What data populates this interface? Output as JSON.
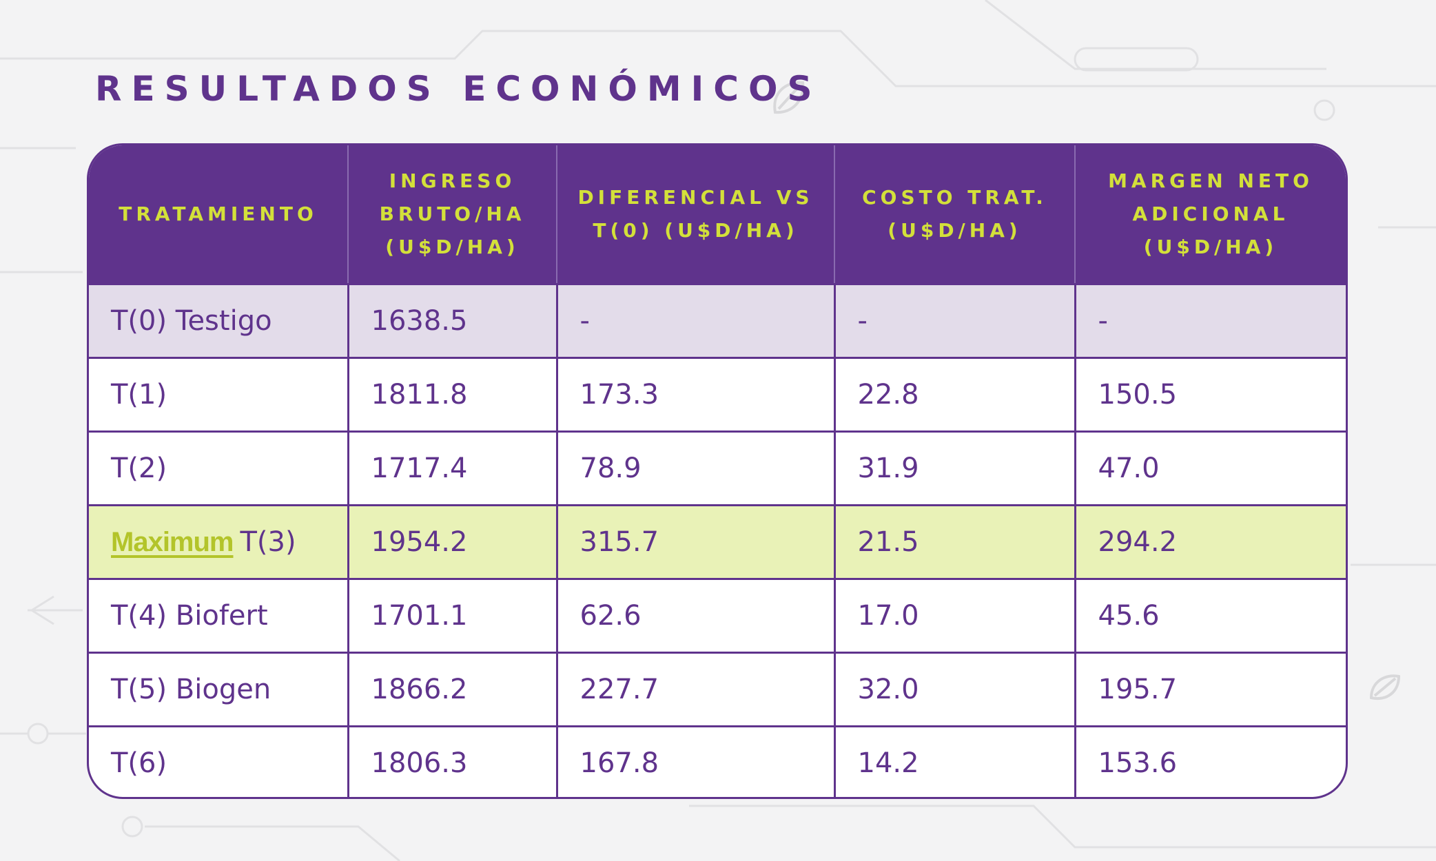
{
  "title": "RESULTADOS ECONÓMICOS",
  "colors": {
    "header_bg": "#5f338c",
    "header_text": "#d3e03a",
    "body_text": "#5f338c",
    "control_row_bg": "#e3dcea",
    "highlight_row_bg": "#e9f2b7",
    "brand_text": "#b3c42a"
  },
  "table": {
    "headers": [
      {
        "lines": [
          "TRATAMIENTO"
        ]
      },
      {
        "lines": [
          "INGRESO",
          "BRUTO/HA",
          "(U$D/HA)"
        ]
      },
      {
        "lines": [
          "DIFERENCIAL VS",
          "T(0) (U$D/HA)"
        ]
      },
      {
        "lines": [
          "COSTO TRAT.",
          "(U$D/HA)"
        ]
      },
      {
        "lines": [
          "MARGEN NETO",
          "ADICIONAL",
          "(U$D/HA)"
        ]
      }
    ],
    "rows": [
      {
        "tratamiento": "T(0) Testigo",
        "ingreso": "1638.5",
        "diferencial": "-",
        "costo": "-",
        "margen": "-"
      },
      {
        "tratamiento": "T(1)",
        "ingreso": "1811.8",
        "diferencial": "173.3",
        "costo": "22.8",
        "margen": "150.5"
      },
      {
        "tratamiento": "T(2)",
        "ingreso": "1717.4",
        "diferencial": "78.9",
        "costo": "31.9",
        "margen": "47.0"
      },
      {
        "brand": "Maximum",
        "tratamiento": "T(3)",
        "ingreso": "1954.2",
        "diferencial": "315.7",
        "costo": "21.5",
        "margen": "294.2"
      },
      {
        "tratamiento": "T(4) Biofert",
        "ingreso": "1701.1",
        "diferencial": "62.6",
        "costo": "17.0",
        "margen": "45.6"
      },
      {
        "tratamiento": "T(5) Biogen",
        "ingreso": "1866.2",
        "diferencial": "227.7",
        "costo": "32.0",
        "margen": "195.7"
      },
      {
        "tratamiento": "T(6)",
        "ingreso": "1806.3",
        "diferencial": "167.8",
        "costo": "14.2",
        "margen": "153.6"
      }
    ]
  }
}
